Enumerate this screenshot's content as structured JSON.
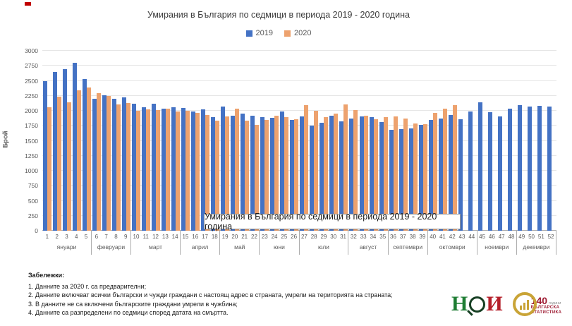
{
  "chart_data": {
    "type": "bar",
    "title": "Умирания в България по седмици в периода 2019 - 2020 година",
    "ylabel": "Брой",
    "ylim": [
      0,
      3000
    ],
    "yticks": [
      0,
      250,
      500,
      750,
      1000,
      1250,
      1500,
      1750,
      2000,
      2250,
      2500,
      2750,
      3000
    ],
    "grid": true,
    "legend_position": "top",
    "categories": [
      1,
      2,
      3,
      4,
      5,
      6,
      7,
      8,
      9,
      10,
      11,
      12,
      13,
      14,
      15,
      16,
      17,
      18,
      19,
      20,
      21,
      22,
      23,
      24,
      25,
      26,
      27,
      28,
      29,
      30,
      31,
      32,
      33,
      34,
      35,
      36,
      37,
      38,
      39,
      40,
      41,
      42,
      43,
      44,
      45,
      46,
      47,
      48,
      49,
      50,
      51,
      52
    ],
    "month_groups": [
      {
        "label": "януари",
        "from": 1,
        "to": 5
      },
      {
        "label": "февруари",
        "from": 6,
        "to": 9
      },
      {
        "label": "март",
        "from": 10,
        "to": 14
      },
      {
        "label": "април",
        "from": 15,
        "to": 18
      },
      {
        "label": "май",
        "from": 19,
        "to": 22
      },
      {
        "label": "юни",
        "from": 23,
        "to": 26
      },
      {
        "label": "юли",
        "from": 27,
        "to": 31
      },
      {
        "label": "август",
        "from": 32,
        "to": 35
      },
      {
        "label": "септември",
        "from": 36,
        "to": 39
      },
      {
        "label": "октомври",
        "from": 40,
        "to": 44
      },
      {
        "label": "ноември",
        "from": 45,
        "to": 48
      },
      {
        "label": "декември",
        "from": 49,
        "to": 52
      }
    ],
    "series": [
      {
        "name": "2019",
        "color": "#4472C4",
        "values": [
          2500,
          2650,
          2700,
          2800,
          2530,
          2200,
          2260,
          2200,
          2220,
          2120,
          2060,
          2120,
          2040,
          2060,
          2050,
          1990,
          2020,
          1900,
          2070,
          1920,
          1950,
          1920,
          1890,
          1880,
          1990,
          1850,
          1910,
          1750,
          1800,
          1920,
          1820,
          1870,
          1910,
          1890,
          1810,
          1680,
          1690,
          1710,
          1770,
          1850,
          1870,
          1930,
          1860,
          1990,
          2140,
          1980,
          1910,
          2040,
          2090,
          2070,
          2080,
          2070
        ]
      },
      {
        "name": "2020",
        "color": "#EDA26E",
        "values": [
          2060,
          2230,
          2140,
          2340,
          2390,
          2300,
          2250,
          2110,
          2130,
          2000,
          2020,
          2010,
          2040,
          1990,
          2000,
          1970,
          1930,
          1830,
          1910,
          2040,
          1830,
          1770,
          1850,
          1920,
          1900,
          1860,
          2100,
          2000,
          1890,
          1950,
          2110,
          2010,
          1920,
          1860,
          1900,
          1910,
          1870,
          1790,
          1780,
          1970,
          2040,
          2090,
          null,
          null,
          null,
          null,
          null,
          null,
          null,
          null,
          null,
          null
        ]
      }
    ]
  },
  "tooltip": {
    "text": "Умирания в България по седмици в периода 2019 - 2020 година"
  },
  "notes": {
    "heading": "Забележки:",
    "items": [
      "1. Данните за 2020 г. са предварителни;",
      "2. Данните включват всички български и чужди граждани с настоящ адрес в страната, умрели на територията на страната;",
      "3. В данните не са включени българските граждани умрели в чужбина;",
      "4. Данните са разпределени по седмици според датата на смъртта."
    ]
  },
  "logos": {
    "nsi": {
      "letter_h": "Н",
      "letter_i": "И"
    },
    "anniversary": {
      "number": "140",
      "years_label": "години",
      "line1": "българска",
      "line2": "статистика"
    }
  },
  "colors": {
    "series_2019": "#4472C4",
    "series_2020": "#EDA26E",
    "gridline": "#E6E6E6",
    "axis": "#ADADAD",
    "marker_red": "#C00000"
  }
}
